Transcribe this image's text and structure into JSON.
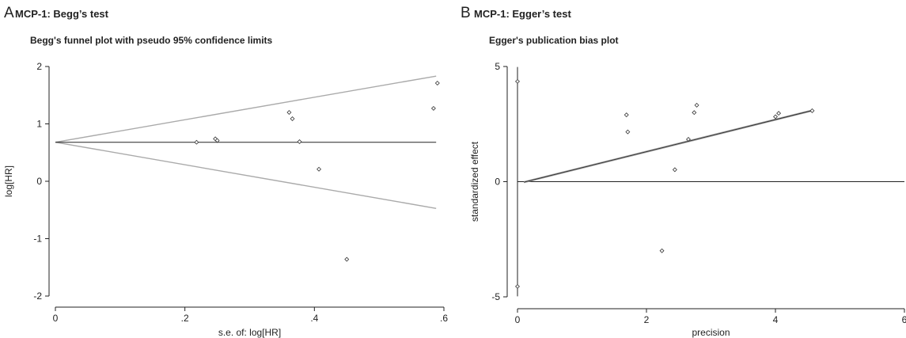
{
  "chart_data": [
    {
      "type": "scatter",
      "panel_letter": "A",
      "panel_title": "MCP-1: Begg’s test",
      "title": "Begg's funnel plot with pseudo 95% confidence limits",
      "xlabel": "s.e. of: log[HR]",
      "ylabel": "log[HR]",
      "xlim": [
        0,
        0.6
      ],
      "ylim": [
        -2,
        2
      ],
      "xticks": [
        0,
        0.2,
        0.4,
        0.6
      ],
      "xtick_labels": [
        "0",
        ".2",
        ".4",
        ".6"
      ],
      "yticks": [
        -2,
        -1,
        0,
        1,
        2
      ],
      "ytick_labels": [
        "-2",
        "-1",
        "0",
        "1",
        "2"
      ],
      "grid": false,
      "pooled_estimate": 0.68,
      "ci_multiplier": 1.96,
      "points": [
        {
          "x": 0.218,
          "y": 0.68
        },
        {
          "x": 0.247,
          "y": 0.74
        },
        {
          "x": 0.25,
          "y": 0.71
        },
        {
          "x": 0.361,
          "y": 1.2
        },
        {
          "x": 0.366,
          "y": 1.09
        },
        {
          "x": 0.377,
          "y": 0.69
        },
        {
          "x": 0.407,
          "y": 0.21
        },
        {
          "x": 0.45,
          "y": -1.36
        },
        {
          "x": 0.584,
          "y": 1.27
        },
        {
          "x": 0.59,
          "y": 1.71
        }
      ]
    },
    {
      "type": "scatter",
      "panel_letter": "B",
      "panel_title": "MCP-1: Egger’s test",
      "title": "Egger's publication bias plot",
      "xlabel": "precision",
      "ylabel": "standardized effect",
      "xlim": [
        0,
        6
      ],
      "ylim": [
        -5,
        5
      ],
      "xticks": [
        0,
        2,
        4,
        6
      ],
      "xtick_labels": [
        "0",
        "2",
        "4",
        "6"
      ],
      "yticks": [
        -5,
        0,
        5
      ],
      "ytick_labels": [
        "-5",
        "0",
        "5"
      ],
      "grid": false,
      "regression_line": {
        "x": [
          0.1,
          4.57
        ],
        "y": [
          -0.02,
          3.09
        ]
      },
      "points": [
        {
          "x": 1.69,
          "y": 2.9
        },
        {
          "x": 1.71,
          "y": 2.16
        },
        {
          "x": 2.24,
          "y": -3.0
        },
        {
          "x": 2.44,
          "y": 0.52
        },
        {
          "x": 2.65,
          "y": 1.84
        },
        {
          "x": 2.74,
          "y": 3.0
        },
        {
          "x": 2.78,
          "y": 3.32
        },
        {
          "x": 4.0,
          "y": 2.82
        },
        {
          "x": 4.05,
          "y": 2.97
        },
        {
          "x": 4.57,
          "y": 3.08
        }
      ],
      "intercept_ci_points": [
        {
          "x": 0,
          "y": 4.35
        },
        {
          "x": 0,
          "y": -4.55
        }
      ],
      "intercept_ci": [
        -4.98,
        4.98
      ]
    }
  ]
}
